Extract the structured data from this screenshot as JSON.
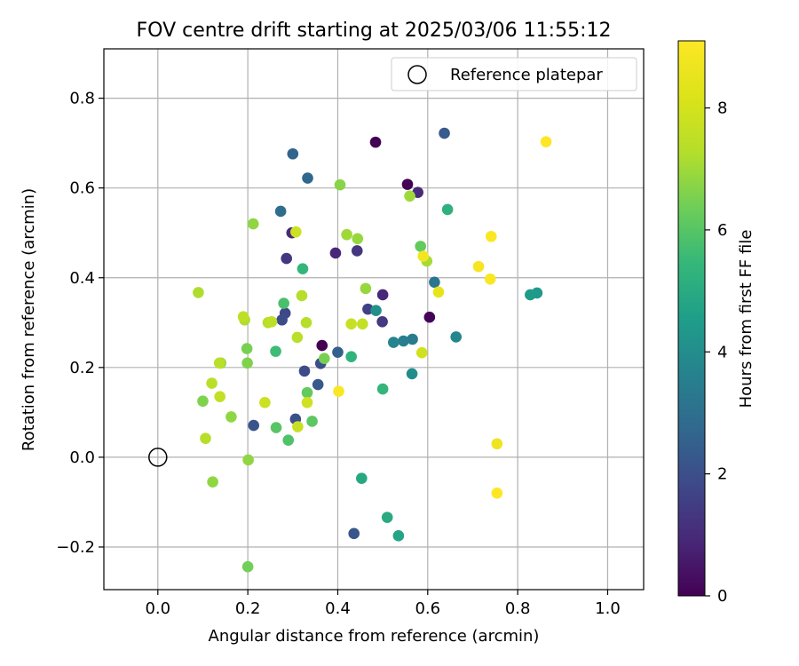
{
  "chart_data": {
    "type": "scatter",
    "title": "FOV centre drift starting at 2025/03/06 11:55:12",
    "xlabel": "Angular distance from reference (arcmin)",
    "ylabel": "Rotation from reference (arcmin)",
    "xlim": [
      -0.12,
      1.08
    ],
    "ylim": [
      -0.295,
      0.91
    ],
    "xticks": [
      0.0,
      0.2,
      0.4,
      0.6,
      0.8,
      1.0
    ],
    "xtick_labels": [
      "0.0",
      "0.2",
      "0.4",
      "0.6",
      "0.8",
      "1.0"
    ],
    "yticks": [
      -0.2,
      0.0,
      0.2,
      0.4,
      0.6,
      0.8
    ],
    "ytick_labels": [
      "−0.2",
      "0.0",
      "0.2",
      "0.4",
      "0.6",
      "0.8"
    ],
    "grid": true,
    "legend": {
      "position": "top-right",
      "entries": [
        "Reference platepar"
      ]
    },
    "reference_point": {
      "x": 0.0,
      "y": 0.0,
      "label": "Reference platepar"
    },
    "colorbar": {
      "label": "Hours from first FF file",
      "colormap": "viridis",
      "min": 0,
      "max": 9.1,
      "ticks": [
        0,
        2,
        4,
        6,
        8
      ],
      "tick_labels": [
        "0",
        "2",
        "4",
        "6",
        "8"
      ]
    },
    "points": [
      {
        "x": 0.484,
        "y": 0.702,
        "h": 0.0
      },
      {
        "x": 0.555,
        "y": 0.608,
        "h": 0.0
      },
      {
        "x": 0.604,
        "y": 0.312,
        "h": 0.1
      },
      {
        "x": 0.365,
        "y": 0.249,
        "h": 0.0
      },
      {
        "x": 0.395,
        "y": 0.455,
        "h": 0.9
      },
      {
        "x": 0.5,
        "y": 0.362,
        "h": 0.9
      },
      {
        "x": 0.578,
        "y": 0.59,
        "h": 1.0
      },
      {
        "x": 0.298,
        "y": 0.5,
        "h": 1.0
      },
      {
        "x": 0.286,
        "y": 0.443,
        "h": 1.3
      },
      {
        "x": 0.443,
        "y": 0.46,
        "h": 1.3
      },
      {
        "x": 0.499,
        "y": 0.302,
        "h": 1.4
      },
      {
        "x": 0.467,
        "y": 0.33,
        "h": 1.6
      },
      {
        "x": 0.283,
        "y": 0.321,
        "h": 1.8
      },
      {
        "x": 0.276,
        "y": 0.306,
        "h": 1.9
      },
      {
        "x": 0.326,
        "y": 0.192,
        "h": 1.9
      },
      {
        "x": 0.362,
        "y": 0.209,
        "h": 2.0
      },
      {
        "x": 0.306,
        "y": 0.085,
        "h": 2.0
      },
      {
        "x": 0.213,
        "y": 0.071,
        "h": 2.1
      },
      {
        "x": 0.436,
        "y": -0.17,
        "h": 2.2
      },
      {
        "x": 0.637,
        "y": 0.722,
        "h": 2.3
      },
      {
        "x": 0.356,
        "y": 0.162,
        "h": 2.3
      },
      {
        "x": 0.4,
        "y": 0.234,
        "h": 2.5
      },
      {
        "x": 0.3,
        "y": 0.676,
        "h": 2.6
      },
      {
        "x": 0.333,
        "y": 0.622,
        "h": 2.7
      },
      {
        "x": 0.273,
        "y": 0.548,
        "h": 2.9
      },
      {
        "x": 0.615,
        "y": 0.39,
        "h": 3.2
      },
      {
        "x": 0.566,
        "y": 0.263,
        "h": 3.4
      },
      {
        "x": 0.546,
        "y": 0.259,
        "h": 3.5
      },
      {
        "x": 0.524,
        "y": 0.256,
        "h": 3.7
      },
      {
        "x": 0.663,
        "y": 0.268,
        "h": 3.8
      },
      {
        "x": 0.565,
        "y": 0.186,
        "h": 4.0
      },
      {
        "x": 0.485,
        "y": 0.327,
        "h": 4.1
      },
      {
        "x": 0.843,
        "y": 0.366,
        "h": 4.4
      },
      {
        "x": 0.828,
        "y": 0.362,
        "h": 4.5
      },
      {
        "x": 0.535,
        "y": -0.175,
        "h": 4.8
      },
      {
        "x": 0.453,
        "y": -0.047,
        "h": 4.9
      },
      {
        "x": 0.51,
        "y": -0.134,
        "h": 5.0
      },
      {
        "x": 0.644,
        "y": 0.552,
        "h": 5.2
      },
      {
        "x": 0.43,
        "y": 0.224,
        "h": 5.3
      },
      {
        "x": 0.5,
        "y": 0.152,
        "h": 5.4
      },
      {
        "x": 0.322,
        "y": 0.42,
        "h": 5.4
      },
      {
        "x": 0.262,
        "y": 0.236,
        "h": 5.6
      },
      {
        "x": 0.28,
        "y": 0.343,
        "h": 5.8
      },
      {
        "x": 0.29,
        "y": 0.038,
        "h": 5.9
      },
      {
        "x": 0.263,
        "y": 0.066,
        "h": 6.0
      },
      {
        "x": 0.343,
        "y": 0.08,
        "h": 6.1
      },
      {
        "x": 0.332,
        "y": 0.144,
        "h": 6.2
      },
      {
        "x": 0.584,
        "y": 0.47,
        "h": 6.2
      },
      {
        "x": 0.2,
        "y": -0.244,
        "h": 6.4
      },
      {
        "x": 0.198,
        "y": 0.242,
        "h": 6.5
      },
      {
        "x": 0.37,
        "y": 0.22,
        "h": 6.5
      },
      {
        "x": 0.199,
        "y": 0.21,
        "h": 6.6
      },
      {
        "x": 0.1,
        "y": 0.125,
        "h": 6.6
      },
      {
        "x": 0.405,
        "y": 0.607,
        "h": 6.7
      },
      {
        "x": 0.212,
        "y": 0.52,
        "h": 6.8
      },
      {
        "x": 0.14,
        "y": 0.21,
        "h": 6.8
      },
      {
        "x": 0.201,
        "y": -0.006,
        "h": 6.8
      },
      {
        "x": 0.122,
        "y": -0.055,
        "h": 6.8
      },
      {
        "x": 0.163,
        "y": 0.09,
        "h": 6.8
      },
      {
        "x": 0.444,
        "y": 0.487,
        "h": 6.9
      },
      {
        "x": 0.462,
        "y": 0.376,
        "h": 6.9
      },
      {
        "x": 0.42,
        "y": 0.496,
        "h": 7.0
      },
      {
        "x": 0.56,
        "y": 0.582,
        "h": 7.0
      },
      {
        "x": 0.598,
        "y": 0.437,
        "h": 7.1
      },
      {
        "x": 0.09,
        "y": 0.367,
        "h": 7.2
      },
      {
        "x": 0.193,
        "y": 0.306,
        "h": 7.2
      },
      {
        "x": 0.106,
        "y": 0.042,
        "h": 7.3
      },
      {
        "x": 0.245,
        "y": 0.3,
        "h": 7.3
      },
      {
        "x": 0.32,
        "y": 0.36,
        "h": 7.3
      },
      {
        "x": 0.33,
        "y": 0.3,
        "h": 7.3
      },
      {
        "x": 0.31,
        "y": 0.267,
        "h": 7.4
      },
      {
        "x": 0.12,
        "y": 0.165,
        "h": 7.4
      },
      {
        "x": 0.137,
        "y": 0.21,
        "h": 7.4
      },
      {
        "x": 0.253,
        "y": 0.302,
        "h": 7.5
      },
      {
        "x": 0.19,
        "y": 0.313,
        "h": 7.5
      },
      {
        "x": 0.138,
        "y": 0.135,
        "h": 7.6
      },
      {
        "x": 0.455,
        "y": 0.297,
        "h": 7.6
      },
      {
        "x": 0.43,
        "y": 0.297,
        "h": 7.7
      },
      {
        "x": 0.311,
        "y": 0.068,
        "h": 7.7
      },
      {
        "x": 0.238,
        "y": 0.122,
        "h": 7.8
      },
      {
        "x": 0.307,
        "y": 0.502,
        "h": 7.8
      },
      {
        "x": 0.587,
        "y": 0.233,
        "h": 7.9
      },
      {
        "x": 0.332,
        "y": 0.122,
        "h": 7.9
      },
      {
        "x": 0.624,
        "y": 0.368,
        "h": 8.5
      },
      {
        "x": 0.59,
        "y": 0.448,
        "h": 8.8
      },
      {
        "x": 0.754,
        "y": 0.03,
        "h": 8.7
      },
      {
        "x": 0.713,
        "y": 0.425,
        "h": 8.9
      },
      {
        "x": 0.741,
        "y": 0.492,
        "h": 9.0
      },
      {
        "x": 0.402,
        "y": 0.147,
        "h": 9.0
      },
      {
        "x": 0.739,
        "y": 0.397,
        "h": 9.0
      },
      {
        "x": 0.754,
        "y": -0.08,
        "h": 9.1
      },
      {
        "x": 0.863,
        "y": 0.703,
        "h": 9.1
      }
    ]
  }
}
